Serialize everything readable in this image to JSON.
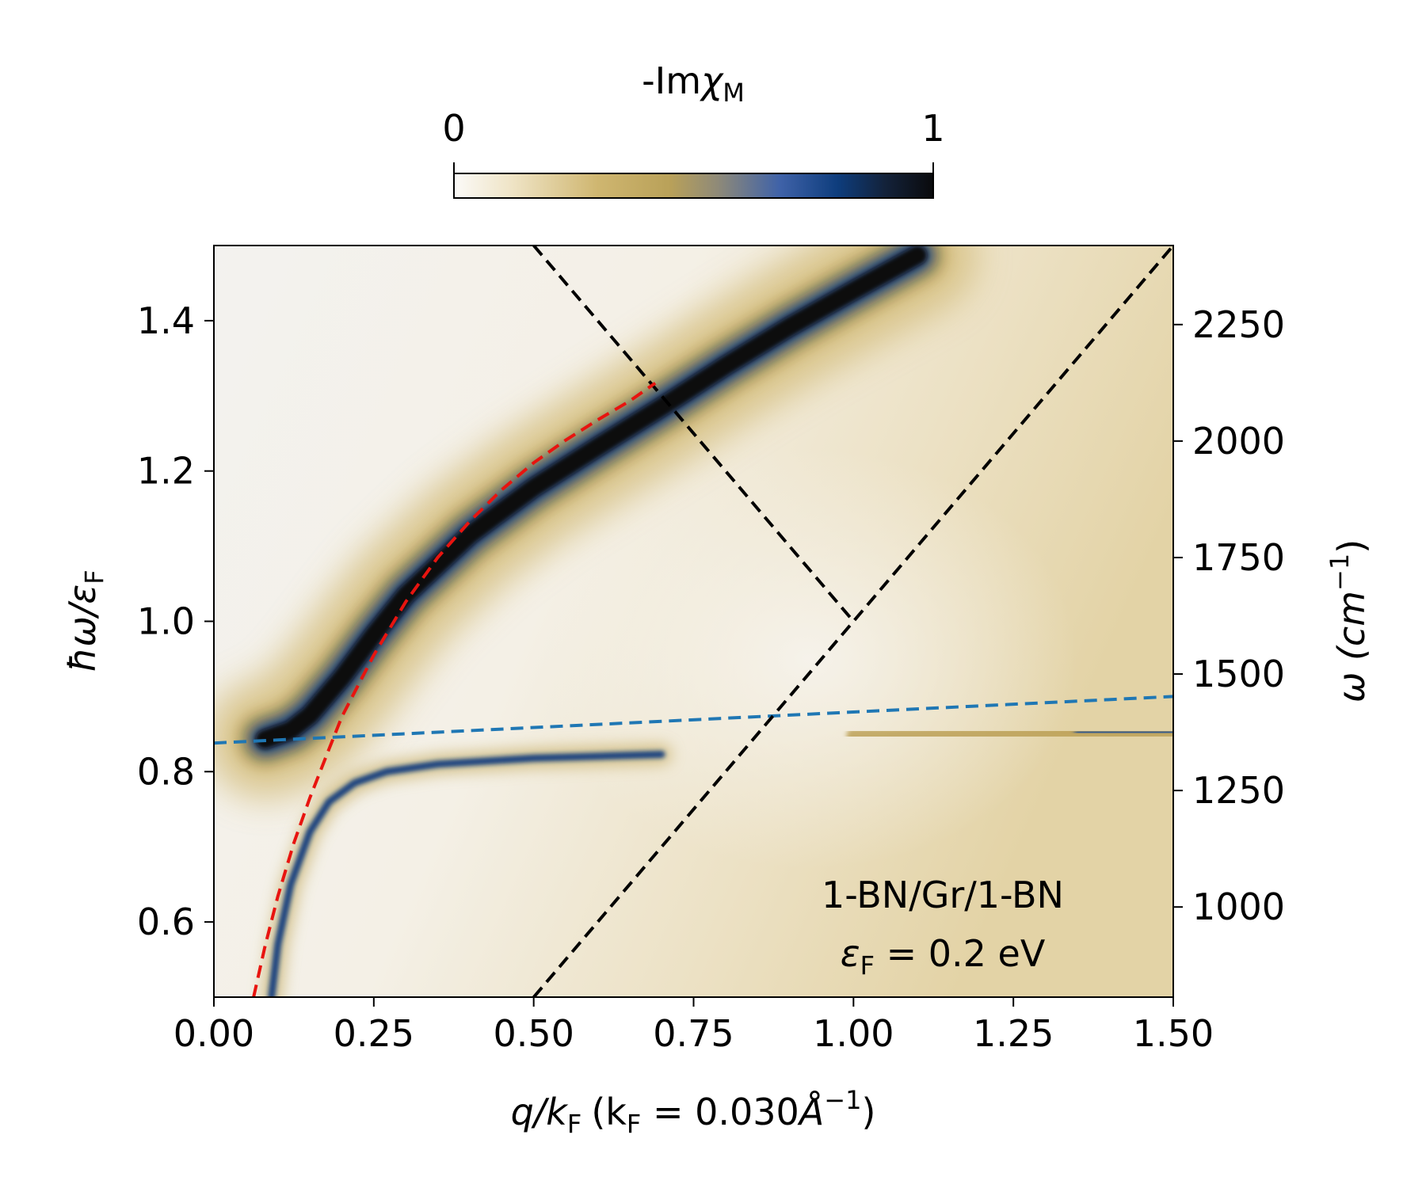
{
  "chart_data": {
    "type": "heatmap",
    "colorbar": {
      "label_main": "-Im",
      "label_symbol": "χ",
      "label_sub": "M",
      "min": 0,
      "max": 1,
      "tick_labels": [
        "0",
        "1"
      ],
      "colormap_stops": [
        {
          "value": 0.0,
          "color": "#fbfaf8"
        },
        {
          "value": 0.12,
          "color": "#efe4c6"
        },
        {
          "value": 0.3,
          "color": "#cfb670"
        },
        {
          "value": 0.45,
          "color": "#b9a159"
        },
        {
          "value": 0.55,
          "color": "#8f8a78"
        },
        {
          "value": 0.68,
          "color": "#3f62a8"
        },
        {
          "value": 0.8,
          "color": "#0e3d7d"
        },
        {
          "value": 0.9,
          "color": "#13223a"
        },
        {
          "value": 1.0,
          "color": "#0a0a0c"
        }
      ]
    },
    "x_axis": {
      "label_main": "q/k",
      "label_sub": "F",
      "label_paren": "(k",
      "label_eq": " = 0.030",
      "label_unit": "Å",
      "label_exp": "−1",
      "label_close": ")",
      "range": [
        0.0,
        1.5
      ],
      "ticks": [
        0.0,
        0.25,
        0.5,
        0.75,
        1.0,
        1.25,
        1.5
      ],
      "tick_labels": [
        "0.00",
        "0.25",
        "0.50",
        "0.75",
        "1.00",
        "1.25",
        "1.50"
      ]
    },
    "y_axis_left": {
      "label_main": "ħω/ε",
      "label_sub": "F",
      "range": [
        0.5,
        1.5
      ],
      "ticks": [
        0.6,
        0.8,
        1.0,
        1.2,
        1.4
      ],
      "tick_labels": [
        "0.6",
        "0.8",
        "1.0",
        "1.2",
        "1.4"
      ]
    },
    "y_axis_right": {
      "label_main": "ω (cm",
      "label_exp": "−1",
      "label_close": ")",
      "ticks": [
        1000,
        1250,
        1500,
        1750,
        2000,
        2250
      ],
      "tick_labels": [
        "1000",
        "1250",
        "1500",
        "1750",
        "2000",
        "2250"
      ],
      "units_per_left_unit": 1613.1
    },
    "series": [
      {
        "name": "phonon line",
        "style": "dashed",
        "color": "#1f77b4",
        "x": [
          0.0,
          1.5
        ],
        "y": [
          0.838,
          0.9
        ]
      },
      {
        "name": "intraband edge",
        "style": "dashed",
        "color": "#000000",
        "x": [
          0.5,
          1.5
        ],
        "y": [
          0.5,
          1.5
        ]
      },
      {
        "name": "interband edge",
        "style": "dashed",
        "color": "#000000",
        "x": [
          0.5,
          1.0
        ],
        "y": [
          1.5,
          1.0
        ]
      },
      {
        "name": "plasmon dispersion",
        "style": "dashed",
        "color": "#e8140f",
        "x": [
          0.062,
          0.08,
          0.1,
          0.125,
          0.15,
          0.18,
          0.2,
          0.25,
          0.3,
          0.35,
          0.4,
          0.45,
          0.5,
          0.55,
          0.6,
          0.65,
          0.69
        ],
        "y": [
          0.5,
          0.568,
          0.634,
          0.705,
          0.765,
          0.83,
          0.873,
          0.955,
          1.026,
          1.085,
          1.133,
          1.175,
          1.211,
          1.241,
          1.268,
          1.293,
          1.317
        ]
      }
    ],
    "heatmap_features": [
      {
        "name": "upper branch",
        "x": [
          0.08,
          0.12,
          0.15,
          0.2,
          0.25,
          0.3,
          0.4,
          0.5,
          0.6,
          0.7,
          0.8,
          0.9,
          1.0,
          1.1
        ],
        "y": [
          0.843,
          0.855,
          0.875,
          0.925,
          0.982,
          1.035,
          1.115,
          1.178,
          1.232,
          1.285,
          1.34,
          1.392,
          1.44,
          1.487
        ]
      },
      {
        "name": "lower branch",
        "x": [
          0.09,
          0.1,
          0.12,
          0.15,
          0.18,
          0.22,
          0.27,
          0.35,
          0.5,
          0.7
        ],
        "y": [
          0.5,
          0.57,
          0.65,
          0.72,
          0.76,
          0.785,
          0.8,
          0.81,
          0.818,
          0.823
        ]
      },
      {
        "name": "phonon band",
        "x": [
          1.0,
          1.1,
          1.2,
          1.3,
          1.4,
          1.5
        ],
        "y": [
          0.848,
          0.849,
          0.85,
          0.851,
          0.852,
          0.853
        ]
      }
    ],
    "annotations": {
      "line1": "1-BN/Gr/1-BN",
      "line2_symbol": "ε",
      "line2_sub": "F",
      "line2_rest": " = 0.2 eV"
    }
  }
}
